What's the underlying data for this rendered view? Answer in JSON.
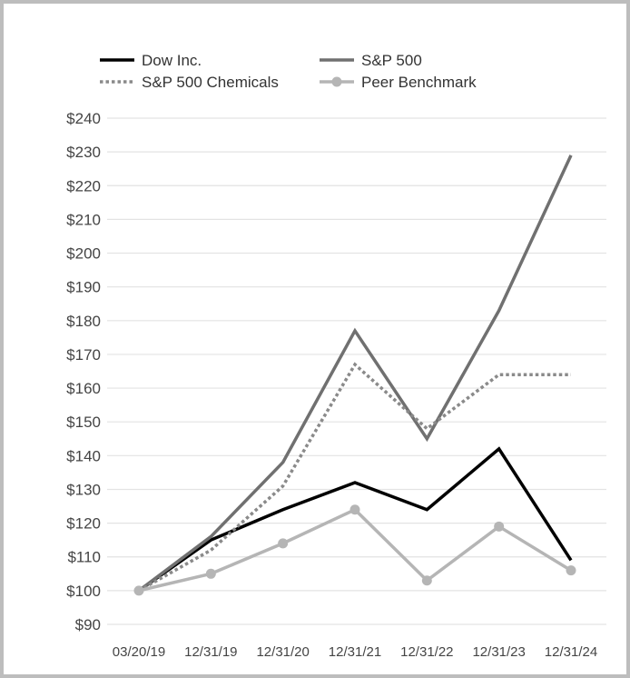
{
  "chart_data": {
    "type": "line",
    "title": "",
    "xlabel": "",
    "ylabel": "",
    "categories": [
      "03/20/19",
      "12/31/19",
      "12/31/20",
      "12/31/21",
      "12/31/22",
      "12/31/23",
      "12/31/24"
    ],
    "ylim": [
      90,
      240
    ],
    "yticks": [
      90,
      100,
      110,
      120,
      130,
      140,
      150,
      160,
      170,
      180,
      190,
      200,
      210,
      220,
      230,
      240
    ],
    "ytick_labels": [
      "$90",
      "$100",
      "$110",
      "$120",
      "$130",
      "$140",
      "$150",
      "$160",
      "$170",
      "$180",
      "$190",
      "$200",
      "$210",
      "$220",
      "$230",
      "$240"
    ],
    "grid": true,
    "legend_position": "top",
    "series": [
      {
        "name": "Dow Inc.",
        "values": [
          100,
          115,
          124,
          132,
          124,
          142,
          109
        ],
        "color": "#000000",
        "style": "solid",
        "markers": false
      },
      {
        "name": "S&P 500",
        "values": [
          100,
          116,
          138,
          177,
          145,
          183,
          229
        ],
        "color": "#707070",
        "style": "solid",
        "markers": false
      },
      {
        "name": "S&P 500 Chemicals",
        "values": [
          100,
          112,
          131,
          167,
          148,
          164,
          164
        ],
        "color": "#8a8a8a",
        "style": "dotted",
        "markers": false
      },
      {
        "name": "Peer Benchmark",
        "values": [
          100,
          105,
          114,
          124,
          103,
          119,
          106
        ],
        "color": "#b5b5b5",
        "style": "solid",
        "markers": true
      }
    ]
  }
}
